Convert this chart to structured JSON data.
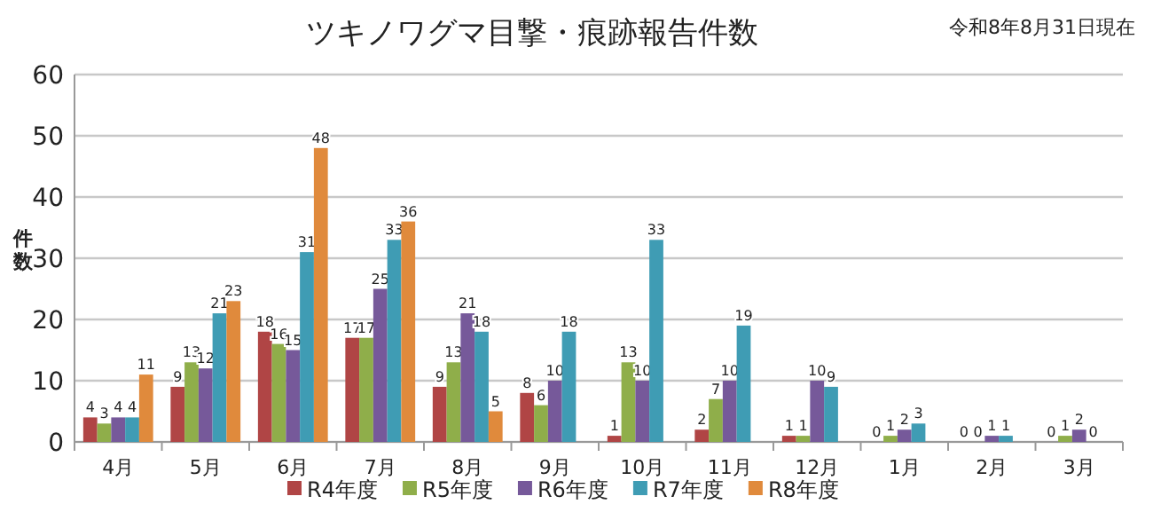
{
  "chart_data": {
    "type": "bar",
    "title": "ツキノワグマ目撃・痕跡報告件数",
    "ylabel": "件数",
    "annotations": [
      "令和8年8月31日現在"
    ],
    "categories": [
      "4月",
      "5月",
      "6月",
      "7月",
      "8月",
      "9月",
      "10月",
      "11月",
      "12月",
      "1月",
      "2月",
      "3月"
    ],
    "series": [
      {
        "name": "R4年度",
        "color": "#b04545",
        "values": [
          4,
          9,
          18,
          17,
          9,
          8,
          1,
          2,
          1,
          0,
          0,
          0
        ]
      },
      {
        "name": "R5年度",
        "color": "#8fae4a",
        "values": [
          3,
          13,
          16,
          17,
          13,
          6,
          13,
          7,
          1,
          1,
          0,
          1
        ]
      },
      {
        "name": "R6年度",
        "color": "#76599a",
        "values": [
          4,
          12,
          15,
          25,
          21,
          10,
          10,
          10,
          10,
          2,
          1,
          2
        ]
      },
      {
        "name": "R7年度",
        "color": "#3f9cb4",
        "values": [
          4,
          21,
          31,
          33,
          18,
          18,
          33,
          19,
          9,
          3,
          1,
          0
        ]
      },
      {
        "name": "R8年度",
        "color": "#e08a3c",
        "values": [
          11,
          23,
          48,
          36,
          5,
          null,
          null,
          null,
          null,
          null,
          null,
          null
        ]
      }
    ],
    "ylim": [
      0,
      60
    ],
    "yticks": [
      0,
      10,
      20,
      30,
      40,
      50,
      60
    ],
    "grid": "y",
    "legend": "bottom",
    "data_labels": true
  }
}
